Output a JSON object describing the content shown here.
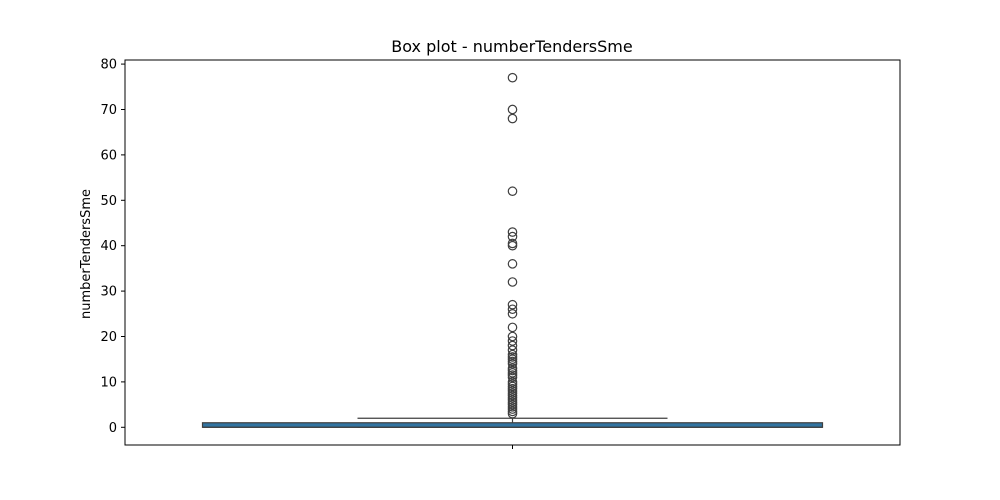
{
  "chart_data": {
    "type": "box",
    "title": "Box plot - numberTendersSme",
    "xlabel": "",
    "ylabel": "numberTendersSme",
    "ylim": [
      -3.9,
      80.9
    ],
    "yticks": [
      0,
      10,
      20,
      30,
      40,
      50,
      60,
      70,
      80
    ],
    "grid": false,
    "box": {
      "whisker_low": 0,
      "q1": 0,
      "median": 0,
      "q3": 1,
      "whisker_high": 2,
      "outliers": [
        3,
        3.5,
        4,
        4.5,
        5,
        5.5,
        6,
        6.5,
        7,
        7.5,
        8,
        8.5,
        9,
        9.5,
        10,
        11,
        11.5,
        12,
        12.5,
        13,
        14,
        14.5,
        15,
        15.5,
        16,
        17,
        18,
        19,
        20,
        22,
        25,
        26,
        27,
        32,
        36,
        40,
        40.5,
        42,
        43,
        52,
        68,
        70,
        77
      ]
    },
    "colors": {
      "box_fill": "#3274a1",
      "line": "#3f3f3f"
    }
  }
}
